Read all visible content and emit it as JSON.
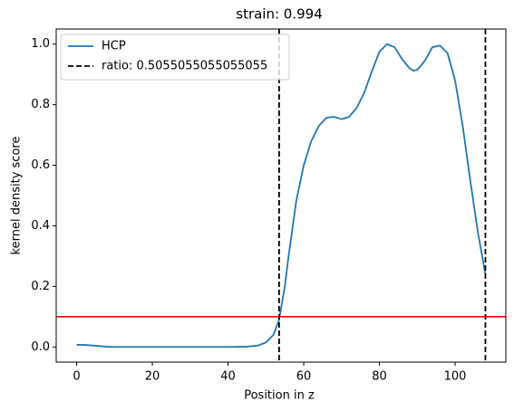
{
  "chart_data": {
    "type": "line",
    "title": "strain: 0.994",
    "xlabel": "Position in z",
    "ylabel": "kernel density score",
    "x": [
      0,
      2,
      5,
      8,
      10,
      20,
      30,
      40,
      45,
      48,
      50,
      52,
      53.5,
      55,
      56,
      58,
      60,
      62,
      64,
      66,
      68,
      70,
      72,
      74,
      76,
      78,
      80,
      82,
      84,
      86,
      88,
      89,
      90,
      92,
      94,
      96,
      98,
      100,
      102,
      104,
      106,
      108
    ],
    "series": [
      {
        "name": "HCP",
        "color": "#1f77b4",
        "values": [
          0.007,
          0.007,
          0.004,
          0.001,
          0,
          0,
          0,
          0,
          0.001,
          0.005,
          0.015,
          0.04,
          0.09,
          0.2,
          0.3,
          0.48,
          0.6,
          0.68,
          0.73,
          0.757,
          0.76,
          0.752,
          0.76,
          0.79,
          0.84,
          0.91,
          0.975,
          1.0,
          0.99,
          0.95,
          0.92,
          0.912,
          0.915,
          0.945,
          0.99,
          0.995,
          0.97,
          0.88,
          0.73,
          0.55,
          0.38,
          0.24
        ]
      }
    ],
    "vlines": {
      "name": "ratio: 0.5055055055055055",
      "color": "#000000",
      "values": [
        53.5,
        108
      ]
    },
    "hlines": {
      "color": "#ff0000",
      "values": [
        0.1
      ]
    },
    "xlim": [
      -5.4,
      113.4
    ],
    "ylim": [
      -0.05,
      1.05
    ],
    "xticks": [
      0,
      20,
      40,
      60,
      80,
      100
    ],
    "yticks": [
      {
        "value": 0,
        "label": "0.0"
      },
      {
        "value": 0.2,
        "label": "0.2"
      },
      {
        "value": 0.4,
        "label": "0.4"
      },
      {
        "value": 0.6,
        "label": "0.6"
      },
      {
        "value": 0.8,
        "label": "0.8"
      },
      {
        "value": 1.0,
        "label": "1.0"
      }
    ],
    "legend": "upper left"
  }
}
